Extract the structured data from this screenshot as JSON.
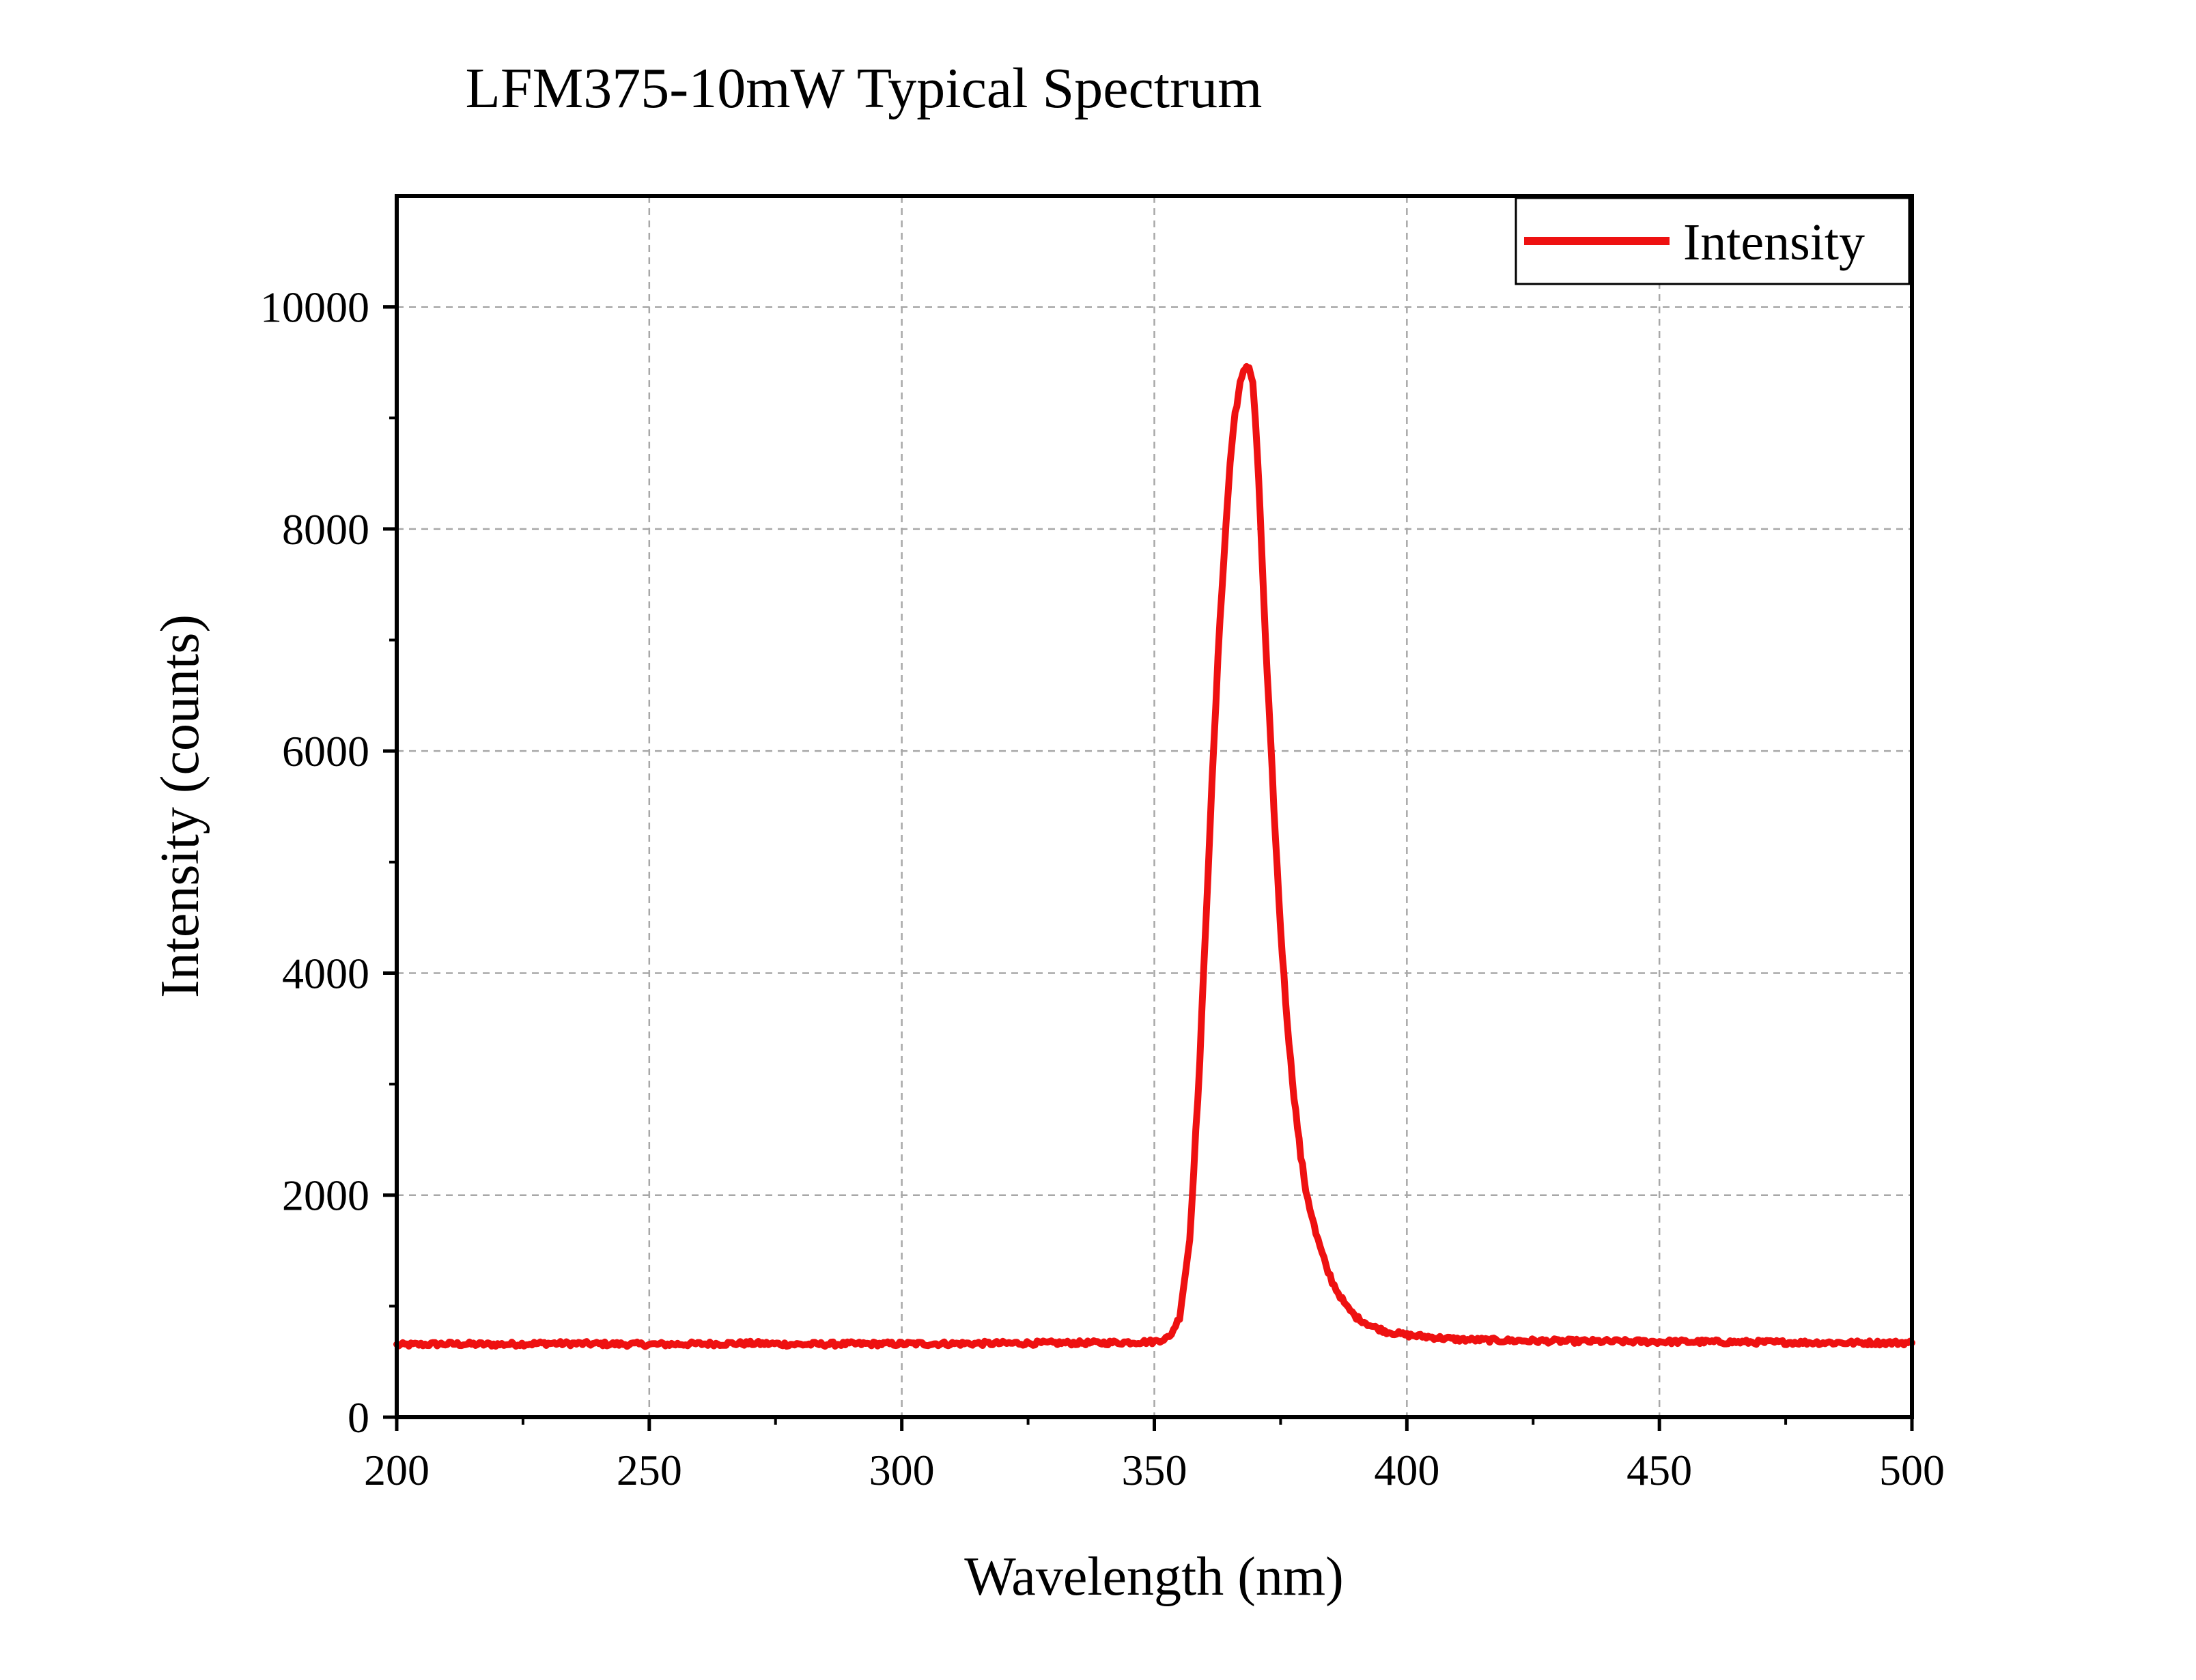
{
  "chart_data": {
    "type": "line",
    "title": "LFM375-10mW Typical Spectrum",
    "xlabel": "Wavelength (nm)",
    "ylabel": "Intensity (counts)",
    "xlim": [
      200,
      500
    ],
    "ylim": [
      0,
      11000
    ],
    "xticks": [
      200,
      250,
      300,
      350,
      400,
      450,
      500
    ],
    "yticks": [
      0,
      2000,
      4000,
      6000,
      8000,
      10000
    ],
    "x_tick_labels": [
      "200",
      "250",
      "300",
      "350",
      "400",
      "450",
      "500"
    ],
    "y_tick_labels": [
      "0",
      "2000",
      "4000",
      "6000",
      "8000",
      "10000"
    ],
    "grid": true,
    "legend_position": "top-right",
    "series": [
      {
        "name": "Intensity",
        "color": "#ee1111",
        "x": [
          200,
          210,
          220,
          230,
          240,
          250,
          260,
          270,
          280,
          290,
          300,
          310,
          320,
          330,
          340,
          350,
          353,
          355,
          357,
          359,
          361,
          363,
          365,
          366,
          367,
          368,
          368.5,
          369,
          369.5,
          370,
          371,
          372,
          373,
          374,
          375,
          376,
          377,
          378,
          379,
          380,
          382,
          384,
          386,
          388,
          390,
          393,
          396,
          400,
          405,
          410,
          420,
          430,
          440,
          450,
          460,
          470,
          480,
          490,
          500
        ],
        "y": [
          650,
          660,
          655,
          665,
          660,
          655,
          660,
          665,
          655,
          660,
          660,
          662,
          665,
          668,
          670,
          680,
          720,
          900,
          1600,
          3200,
          5300,
          7200,
          8600,
          9050,
          9300,
          9450,
          9480,
          9420,
          9300,
          9000,
          8100,
          7000,
          6100,
          5200,
          4400,
          3750,
          3200,
          2750,
          2350,
          2050,
          1650,
          1350,
          1150,
          1000,
          900,
          820,
          770,
          740,
          720,
          700,
          690,
          685,
          682,
          680,
          678,
          675,
          672,
          670,
          670
        ]
      }
    ]
  },
  "colors": {
    "series": "#ee1111",
    "grid": "#a8a8a8",
    "axis": "#000000"
  }
}
